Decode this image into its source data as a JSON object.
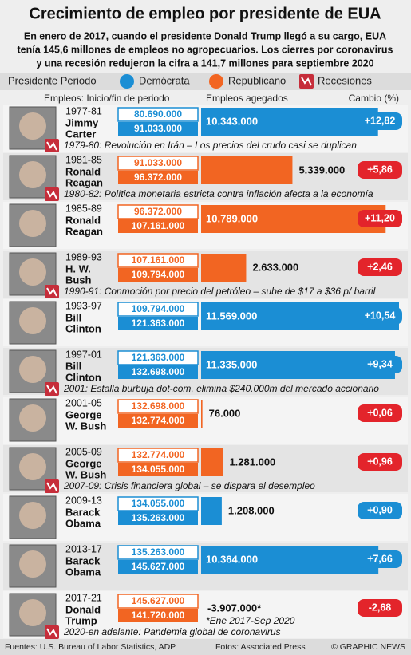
{
  "header": {
    "title": "Crecimiento de empleo por presidente de EUA",
    "subtitle_lines": [
      "En enero de 2017, cuando el presidente Donald Trump llegó a su cargo, EUA",
      "tenía 145,6 millones de empleos no agropecuarios. Los cierres por coronavirus",
      "y una recesión redujeron la cifra a 141,7 millones para septiembre 2020"
    ]
  },
  "legend": {
    "label": "Presidente Periodo",
    "parties": [
      {
        "name": "Demócrata",
        "color": "#1b8ed4",
        "badge_color": "#1b8ed4"
      },
      {
        "name": "Republicano",
        "color": "#f26522",
        "badge_color": "#e3242b"
      }
    ],
    "recession": "Recesiones"
  },
  "columns": {
    "jobs": "Empleos: Inicio/fin de periodo",
    "added": "Empleos agegados",
    "change": "Cambio (%)"
  },
  "rows": [
    {
      "years": "1977-81",
      "name_lines": [
        "Jimmy",
        "Carter"
      ],
      "party": 0,
      "start": "80.690.000",
      "end": "91.033.000",
      "added": 10343000,
      "added_label": "10.343.000",
      "change": 12.82,
      "change_label": "+12,82",
      "recession": "1979-80: Revolución en Irán – Los precios del crudo casi se duplican"
    },
    {
      "years": "1981-85",
      "name_lines": [
        "Ronald",
        "Reagan"
      ],
      "party": 1,
      "start": "91.033.000",
      "end": "96.372.000",
      "added": 5339000,
      "added_label": "5.339.000",
      "change": 5.86,
      "change_label": "+5,86",
      "recession": "1980-82: Política monetaria estricta contra inflación afecta a la economía"
    },
    {
      "years": "1985-89",
      "name_lines": [
        "Ronald",
        "Reagan"
      ],
      "party": 1,
      "start": "96.372.000",
      "end": "107.161.000",
      "added": 10789000,
      "added_label": "10.789.000",
      "change": 11.2,
      "change_label": "+11,20"
    },
    {
      "years": "1989-93",
      "name_lines": [
        "H. W.",
        "Bush"
      ],
      "party": 1,
      "start": "107.161.000",
      "end": "109.794.000",
      "added": 2633000,
      "added_label": "2.633.000",
      "change": 2.46,
      "change_label": "+2,46",
      "recession": "1990-91: Conmoción por precio del petróleo – sube de $17 a $36 p/ barril"
    },
    {
      "years": "1993-97",
      "name_lines": [
        "Bill",
        "Clinton"
      ],
      "party": 0,
      "start": "109.794.000",
      "end": "121.363.000",
      "added": 11569000,
      "added_label": "11.569.000",
      "change": 10.54,
      "change_label": "+10,54"
    },
    {
      "years": "1997-01",
      "name_lines": [
        "Bill",
        "Clinton"
      ],
      "party": 0,
      "start": "121.363.000",
      "end": "132.698.000",
      "added": 11335000,
      "added_label": "11.335.000",
      "change": 9.34,
      "change_label": "+9,34",
      "recession": "2001: Estalla burbuja dot-com, elimina $240.000m del mercado accionario"
    },
    {
      "years": "2001-05",
      "name_lines": [
        "George",
        "W. Bush"
      ],
      "party": 1,
      "start": "132.698.000",
      "end": "132.774.000",
      "added": 76000,
      "added_label": "76.000",
      "change": 0.06,
      "change_label": "+0,06"
    },
    {
      "years": "2005-09",
      "name_lines": [
        "George",
        "W. Bush"
      ],
      "party": 1,
      "start": "132.774.000",
      "end": "134.055.000",
      "added": 1281000,
      "added_label": "1.281.000",
      "change": 0.96,
      "change_label": "+0,96",
      "recession": "2007-09: Crisis financiera global – se dispara el desempleo"
    },
    {
      "years": "2009-13",
      "name_lines": [
        "Barack",
        "Obama"
      ],
      "party": 0,
      "start": "134.055.000",
      "end": "135.263.000",
      "added": 1208000,
      "added_label": "1.208.000",
      "change": 0.9,
      "change_label": "+0,90"
    },
    {
      "years": "2013-17",
      "name_lines": [
        "Barack",
        "Obama"
      ],
      "party": 0,
      "start": "135.263.000",
      "end": "145.627.000",
      "added": 10364000,
      "added_label": "10.364.000",
      "change": 7.66,
      "change_label": "+7,66"
    },
    {
      "years": "2017-21",
      "name_lines": [
        "Donald",
        "Trump"
      ],
      "party": 1,
      "start": "145.627.000",
      "end": "141.720.000",
      "added": -3907000,
      "added_label": "-3.907.000*",
      "change": -2.68,
      "change_label": "-2,68",
      "footnote": "*Ene 2017-Sep 2020",
      "recession": "2020-en adelante: Pandemia global de coronavirus"
    }
  ],
  "footer": {
    "sources": "Fuentes: U.S. Bureau of Labor Statistics, ADP",
    "photos": "Fotos: Associated Press",
    "credit": "© GRAPHIC NEWS"
  }
}
